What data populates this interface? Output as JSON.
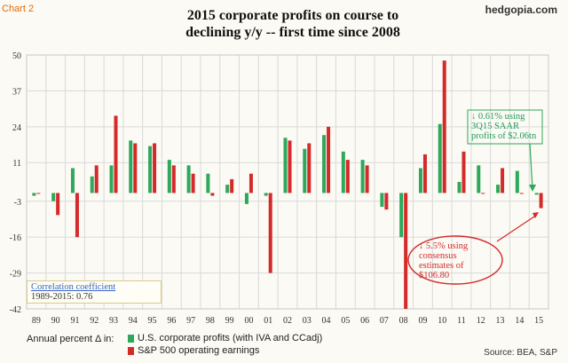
{
  "header": {
    "chart_tag": "Chart 2",
    "brand": "hedgopia.com",
    "title_line1": "2015 corporate profits on course to",
    "title_line2": "declining y/y -- first time since 2008"
  },
  "legend": {
    "lead": "Annual percent Δ in:",
    "items": [
      {
        "label": "U.S. corporate profits (with IVA and CCadj)",
        "color": "#2ea85a"
      },
      {
        "label": "S&P 500 operating earnings",
        "color": "#d42a2a"
      }
    ]
  },
  "source": "Source: BEA, S&P",
  "annotations": {
    "correlation_title": "Correlation coefficient",
    "correlation_value": "1989-2015: 0.76",
    "green_note": "↓ 0.61% using 3Q15 SAAR profits of $2.06tn",
    "red_note": "↓ 5.5% using consensus estimates of $106.80"
  },
  "colors": {
    "green": "#2ea85a",
    "red": "#d42a2a",
    "grid": "#d9d9d9",
    "background": "#fbfaf4"
  },
  "chart_data": {
    "type": "bar",
    "title": "2015 corporate profits on course to declining y/y -- first time since 2008",
    "categories": [
      "89",
      "90",
      "91",
      "92",
      "93",
      "94",
      "95",
      "96",
      "97",
      "98",
      "99",
      "00",
      "01",
      "02",
      "03",
      "04",
      "05",
      "06",
      "07",
      "08",
      "09",
      "10",
      "11",
      "12",
      "13",
      "14",
      "15"
    ],
    "yticks": [
      50,
      37,
      24,
      11,
      -3,
      -16,
      -29,
      -42
    ],
    "ylim": [
      -42,
      50
    ],
    "grid": true,
    "legend_position": "bottom-left",
    "series": [
      {
        "name": "U.S. corporate profits (with IVA and CCadj)",
        "color": "#2ea85a",
        "values": [
          -1,
          -3,
          9,
          6,
          10,
          19,
          17,
          12,
          10,
          7,
          3,
          -4,
          -1,
          20,
          16,
          21,
          15,
          12,
          -5,
          -16,
          9,
          25,
          4,
          10,
          3,
          8,
          -0.61
        ]
      },
      {
        "name": "S&P 500 operating earnings",
        "color": "#d42a2a",
        "values": [
          0,
          -8,
          -16,
          10,
          28,
          18,
          18,
          10,
          7,
          -1,
          5,
          7,
          -29,
          19,
          18,
          24,
          12,
          10,
          -6,
          -42,
          14,
          48,
          15,
          0,
          9,
          0,
          -5.5
        ]
      }
    ]
  }
}
